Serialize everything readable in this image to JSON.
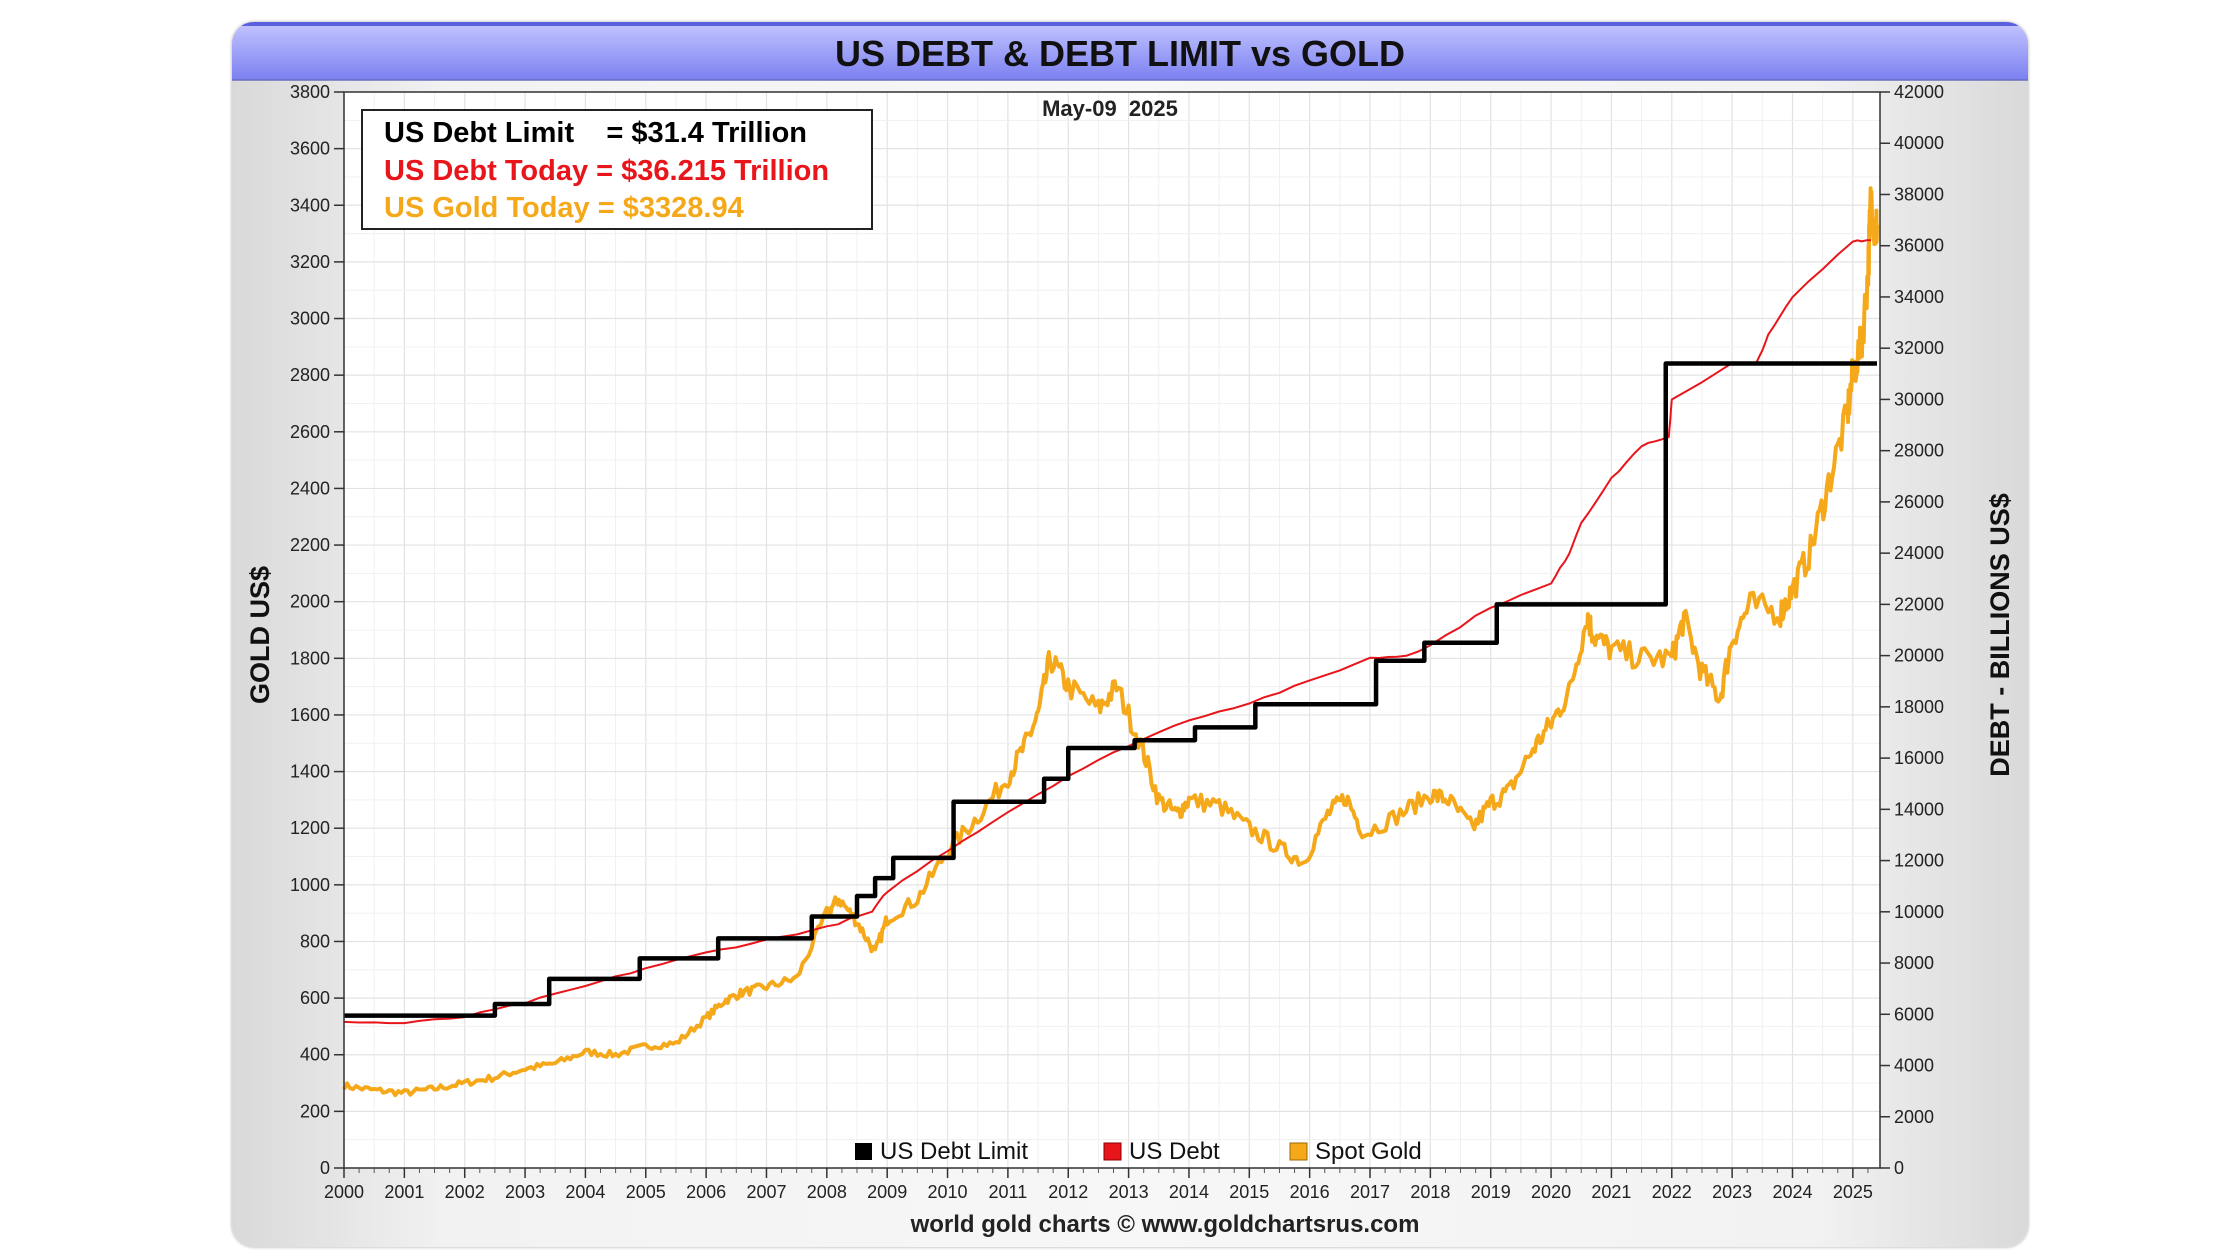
{
  "chart_data": {
    "type": "line",
    "title": "US DEBT & DEBT LIMIT vs GOLD",
    "date_label": "May-09  2025",
    "footer": "world gold charts © www.goldchartsrus.com",
    "ylabel_left": "GOLD US$",
    "ylabel_right": "DEBT - BILLIONS US$",
    "x_ticks": [
      "2000",
      "2001",
      "2002",
      "2003",
      "2004",
      "2005",
      "2006",
      "2007",
      "2008",
      "2009",
      "2010",
      "2011",
      "2012",
      "2013",
      "2014",
      "2015",
      "2016",
      "2017",
      "2018",
      "2019",
      "2020",
      "2021",
      "2022",
      "2023",
      "2024",
      "2025"
    ],
    "xlim": [
      2000,
      2025.45
    ],
    "ylim_left": [
      0,
      3800
    ],
    "ylim_right": [
      0,
      42000
    ],
    "y_ticks_left": [
      "0",
      "200",
      "400",
      "600",
      "800",
      "1000",
      "1200",
      "1400",
      "1600",
      "1800",
      "2000",
      "2200",
      "2400",
      "2600",
      "2800",
      "3000",
      "3200",
      "3400",
      "3600",
      "3800"
    ],
    "y_ticks_right": [
      "0",
      "2000",
      "4000",
      "6000",
      "8000",
      "10000",
      "12000",
      "14000",
      "16000",
      "18000",
      "20000",
      "22000",
      "24000",
      "26000",
      "28000",
      "30000",
      "32000",
      "34000",
      "36000",
      "38000",
      "40000",
      "42000"
    ],
    "grid": true,
    "info_box": [
      {
        "label": "US Debt Limit    = $31.4 Trillion",
        "color": "#000000"
      },
      {
        "label": "US Debt Today = $36.215 Trillion",
        "color": "#e8151b"
      },
      {
        "label": "US Gold Today = $3328.94",
        "color": "#f5a91a"
      }
    ],
    "legend": [
      {
        "label": "US Debt Limit",
        "color": "#000000"
      },
      {
        "label": "US Debt",
        "color": "#e8151b"
      },
      {
        "label": "Spot Gold",
        "color": "#f5a91a"
      }
    ],
    "series": [
      {
        "name": "US Debt Limit",
        "axis": "right",
        "color": "#000000",
        "step": true,
        "x": [
          2000.0,
          2002.5,
          2003.4,
          2004.9,
          2006.2,
          2007.75,
          2008.5,
          2008.8,
          2009.1,
          2010.1,
          2011.6,
          2012.0,
          2013.1,
          2014.1,
          2015.1,
          2017.1,
          2017.9,
          2019.1,
          2021.9,
          2025.4
        ],
        "y": [
          5950,
          6400,
          7384,
          8184,
          8965,
          9815,
          10615,
          11315,
          12104,
          14294,
          15194,
          16394,
          16699,
          17200,
          18100,
          19800,
          20500,
          22000,
          31400,
          31400
        ]
      },
      {
        "name": "US Debt",
        "axis": "right",
        "color": "#e8151b",
        "x": [
          2000.0,
          2001.0,
          2002.0,
          2003.0,
          2004.0,
          2005.0,
          2006.0,
          2007.0,
          2008.0,
          2008.75,
          2009.0,
          2010.0,
          2011.0,
          2012.0,
          2013.0,
          2014.0,
          2015.0,
          2016.0,
          2017.0,
          2017.6,
          2018.0,
          2019.0,
          2020.0,
          2020.3,
          2020.5,
          2021.0,
          2021.5,
          2021.95,
          2022.0,
          2023.0,
          2023.4,
          2023.6,
          2024.0,
          2025.0,
          2025.3
        ],
        "y": [
          5700,
          5650,
          5900,
          6450,
          7100,
          7800,
          8400,
          8900,
          9400,
          10000,
          10800,
          12400,
          13900,
          15300,
          16500,
          17500,
          18150,
          19000,
          19900,
          20000,
          20400,
          21900,
          22800,
          24000,
          25200,
          26900,
          28200,
          28500,
          30000,
          31400,
          31400,
          32500,
          34000,
          36200,
          36215
        ]
      },
      {
        "name": "Spot Gold",
        "axis": "left",
        "color": "#f5a91a",
        "x": [
          2000.0,
          2000.5,
          2001.0,
          2001.5,
          2002.0,
          2002.5,
          2003.0,
          2003.5,
          2004.0,
          2004.5,
          2005.0,
          2005.5,
          2006.0,
          2006.3,
          2006.6,
          2007.0,
          2007.5,
          2008.0,
          2008.2,
          2008.5,
          2008.8,
          2009.0,
          2009.5,
          2010.0,
          2010.5,
          2011.0,
          2011.3,
          2011.5,
          2011.7,
          2012.0,
          2012.5,
          2012.8,
          2013.2,
          2013.5,
          2013.8,
          2014.0,
          2014.5,
          2015.0,
          2015.5,
          2015.9,
          2016.3,
          2016.6,
          2016.9,
          2017.5,
          2018.0,
          2018.3,
          2018.7,
          2019.0,
          2019.3,
          2019.7,
          2020.0,
          2020.3,
          2020.6,
          2020.7,
          2021.0,
          2021.5,
          2022.0,
          2022.2,
          2022.5,
          2022.8,
          2023.0,
          2023.3,
          2023.8,
          2024.0,
          2024.3,
          2024.6,
          2024.9,
          2025.0,
          2025.15,
          2025.25,
          2025.3,
          2025.37,
          2025.4
        ],
        "y": [
          290,
          275,
          265,
          280,
          300,
          320,
          350,
          370,
          410,
          400,
          430,
          440,
          530,
          590,
          620,
          640,
          670,
          900,
          950,
          870,
          760,
          880,
          950,
          1120,
          1240,
          1380,
          1500,
          1600,
          1800,
          1700,
          1620,
          1700,
          1500,
          1300,
          1250,
          1300,
          1280,
          1200,
          1130,
          1080,
          1250,
          1310,
          1180,
          1250,
          1320,
          1300,
          1200,
          1290,
          1330,
          1480,
          1570,
          1680,
          1950,
          1880,
          1830,
          1800,
          1800,
          1940,
          1750,
          1660,
          1870,
          1990,
          1960,
          2040,
          2180,
          2420,
          2650,
          2800,
          2920,
          3150,
          3430,
          3300,
          3330
        ]
      }
    ]
  }
}
